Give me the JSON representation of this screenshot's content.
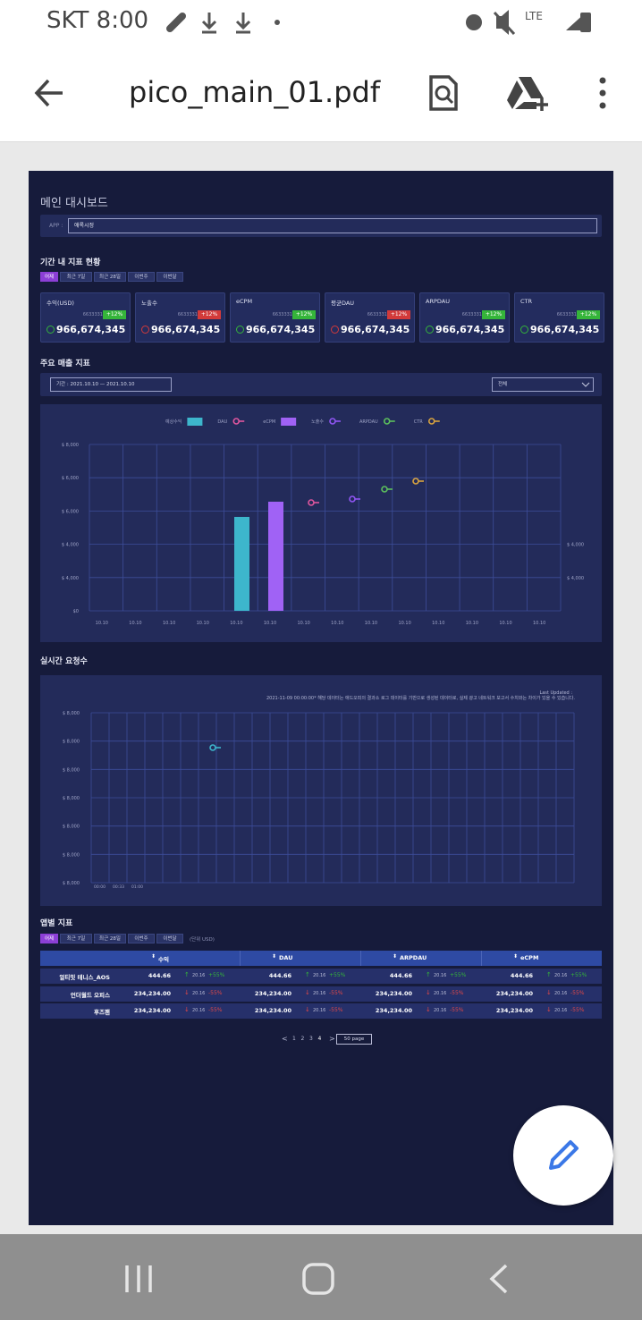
{
  "status_bar": {
    "carrier_time": "SKT 8:00",
    "network": "LTE"
  },
  "toolbar": {
    "file_name": "pico_main_01.pdf"
  },
  "document": {
    "title": "메인 대시보드",
    "app_filter": {
      "label": "APP :",
      "value": "애록시정"
    },
    "period_section": {
      "title": "기간 내 지표 현황",
      "tabs": [
        "어제",
        "최근 7일",
        "최근 28일",
        "이번주",
        "이번달"
      ],
      "cards": [
        {
          "name": "수익(USD)",
          "sub": "6633331",
          "change": "+12%",
          "trend": "up",
          "value": "966,674,345"
        },
        {
          "name": "노출수",
          "sub": "6633331",
          "change": "+12%",
          "trend": "down",
          "value": "966,674,345"
        },
        {
          "name": "eCPM",
          "sub": "6633331",
          "change": "+12%",
          "trend": "up",
          "value": "966,674,345"
        },
        {
          "name": "평균DAU",
          "sub": "6633331",
          "change": "+12%",
          "trend": "down",
          "value": "966,674,345"
        },
        {
          "name": "ARPDAU",
          "sub": "6633331",
          "change": "+12%",
          "trend": "up",
          "value": "966,674,345"
        },
        {
          "name": "CTR",
          "sub": "6633331",
          "change": "+12%",
          "trend": "up",
          "value": "966,674,345"
        }
      ]
    },
    "revenue_section": {
      "title": "주요 매출 지표",
      "period": "기간 :  2021.10.10  —  2021.10.10",
      "select": "전체",
      "legend": [
        {
          "name": "예상수익",
          "shape": "box",
          "color": "#3db6cc"
        },
        {
          "name": "DAU",
          "shape": "pin",
          "color": "#e0569e"
        },
        {
          "name": "eCPM",
          "shape": "box",
          "color": "#a062f5"
        },
        {
          "name": "노출수",
          "shape": "pin",
          "color": "#8f55f2"
        },
        {
          "name": "ARPDAU",
          "shape": "pin",
          "color": "#5cbf5c"
        },
        {
          "name": "CTR",
          "shape": "pin",
          "color": "#d8a33f"
        }
      ],
      "y_labels": [
        "$ 8,000",
        "$ 6,000",
        "$ 6,000",
        "$ 4,000",
        "$ 4,000",
        "$0"
      ],
      "y2_labels": [
        "$ 4,000",
        "$ 4,000"
      ],
      "x_labels": [
        "10.10",
        "10.10",
        "10.10",
        "10.10",
        "10.10",
        "10.10",
        "10.10",
        "10.10",
        "10.10",
        "10.10",
        "10.10",
        "10.10",
        "10.10",
        "10.10"
      ]
    },
    "realtime_section": {
      "title": "실시간 요청수",
      "last_updated": "Last Updated :",
      "note": "2021-11-09 00:00:00* 해당 데이터는 애드오피의 결과소 로그 데이터를 기반으로 생성된 데이터로, 실제 광고 네트워크 보고서 수치와는 차이가 있을 수 있습니다.",
      "y_labels": [
        "$ 8,000",
        "$ 8,000",
        "$ 8,000",
        "$ 8,000",
        "$ 8,000",
        "$ 8,000",
        "$ 8,000"
      ],
      "x_labels": [
        "00:00",
        "00:33",
        "01:00"
      ]
    },
    "app_section": {
      "title": "앱별 지표",
      "tabs": [
        "어제",
        "최근 7일",
        "최근 28일",
        "이번주",
        "이번달"
      ],
      "unit": "(단위 USD)",
      "columns": [
        "수익",
        "DAU",
        "ARPDAU",
        "eCPM"
      ],
      "rows": [
        {
          "name": "얼티밋 테니스_AOS",
          "cells": [
            {
              "value": "444.66",
              "arrow": "↑",
              "delta": "20.16",
              "change": "+55%",
              "trend": "up"
            },
            {
              "value": "444.66",
              "arrow": "↑",
              "delta": "20.16",
              "change": "+55%",
              "trend": "up"
            },
            {
              "value": "444.66",
              "arrow": "↑",
              "delta": "20.16",
              "change": "+55%",
              "trend": "up"
            },
            {
              "value": "444.66",
              "arrow": "↑",
              "delta": "20.16",
              "change": "+55%",
              "trend": "up"
            }
          ]
        },
        {
          "name": "언더월드 오피스",
          "cells": [
            {
              "value": "234,234.00",
              "arrow": "↓",
              "delta": "20.16",
              "change": "-55%",
              "trend": "down"
            },
            {
              "value": "234,234.00",
              "arrow": "↓",
              "delta": "20.16",
              "change": "-55%",
              "trend": "down"
            },
            {
              "value": "234,234.00",
              "arrow": "↓",
              "delta": "20.16",
              "change": "-55%",
              "trend": "down"
            },
            {
              "value": "234,234.00",
              "arrow": "↓",
              "delta": "20.16",
              "change": "-55%",
              "trend": "down"
            }
          ]
        },
        {
          "name": "후즈팬",
          "cells": [
            {
              "value": "234,234.00",
              "arrow": "↓",
              "delta": "20.16",
              "change": "-55%",
              "trend": "down"
            },
            {
              "value": "234,234.00",
              "arrow": "↓",
              "delta": "20.16",
              "change": "-55%",
              "trend": "down"
            },
            {
              "value": "234,234.00",
              "arrow": "↓",
              "delta": "20.16",
              "change": "-55%",
              "trend": "down"
            },
            {
              "value": "234,234.00",
              "arrow": "↓",
              "delta": "20.16",
              "change": "-55%",
              "trend": "down"
            }
          ]
        }
      ]
    },
    "pagination": {
      "prev": "<",
      "pages": [
        "1",
        "2",
        "3",
        "4"
      ],
      "next": ">",
      "size": "50 page"
    }
  }
}
